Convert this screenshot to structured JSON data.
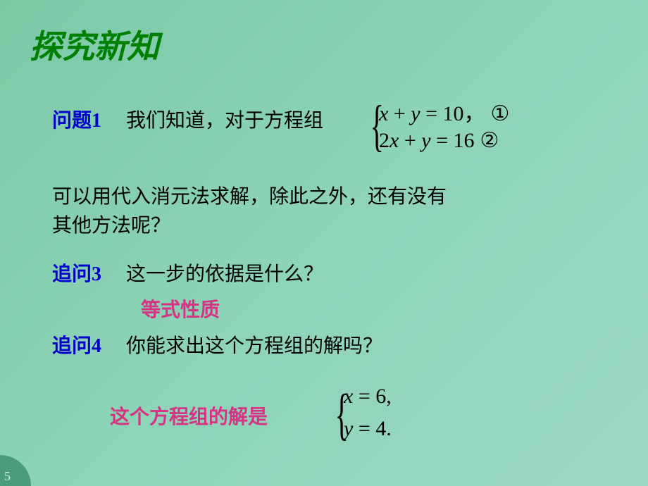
{
  "background_gradient": [
    "#7cc9a8",
    "#8dd4b8",
    "#9dd8c4"
  ],
  "title": {
    "text": "探究新知",
    "color": "#008000",
    "font_size": 46,
    "font_style": "italic",
    "font_family": "KaiTi"
  },
  "question1": {
    "label": "问题1",
    "label_color": "#0000cc",
    "intro_text": "我们知道，对于方程组",
    "text_color": "#000000",
    "system": {
      "eq1": {
        "lhs": "x + y",
        "rhs": "10",
        "suffix": "，",
        "marker": "①"
      },
      "eq2": {
        "lhs": "2x + y",
        "rhs": "16",
        "marker": "②"
      },
      "font_family": "Times New Roman",
      "font_size": 30
    },
    "paragraph_line1": "可以用代入消元法求解，除此之外，还有没有",
    "paragraph_line2": "其他方法呢？"
  },
  "followup3": {
    "label": "追问3",
    "label_color": "#0000cc",
    "text": "这一步的依据是什么？",
    "answer": "等式性质",
    "answer_color": "#d63384"
  },
  "followup4": {
    "label": "追问4",
    "label_color": "#0000cc",
    "text": "你能求出这个方程组的解吗？",
    "answer_prefix": "这个方程组的解是",
    "answer_color": "#d63384",
    "solution": {
      "eq1": {
        "var": "x",
        "val": "6",
        "punct": ","
      },
      "eq2": {
        "var": "y",
        "val": "4",
        "punct": "."
      },
      "font_family": "Times New Roman",
      "font_size": 30
    }
  },
  "page_marker": "5",
  "text_fontsize": 28
}
